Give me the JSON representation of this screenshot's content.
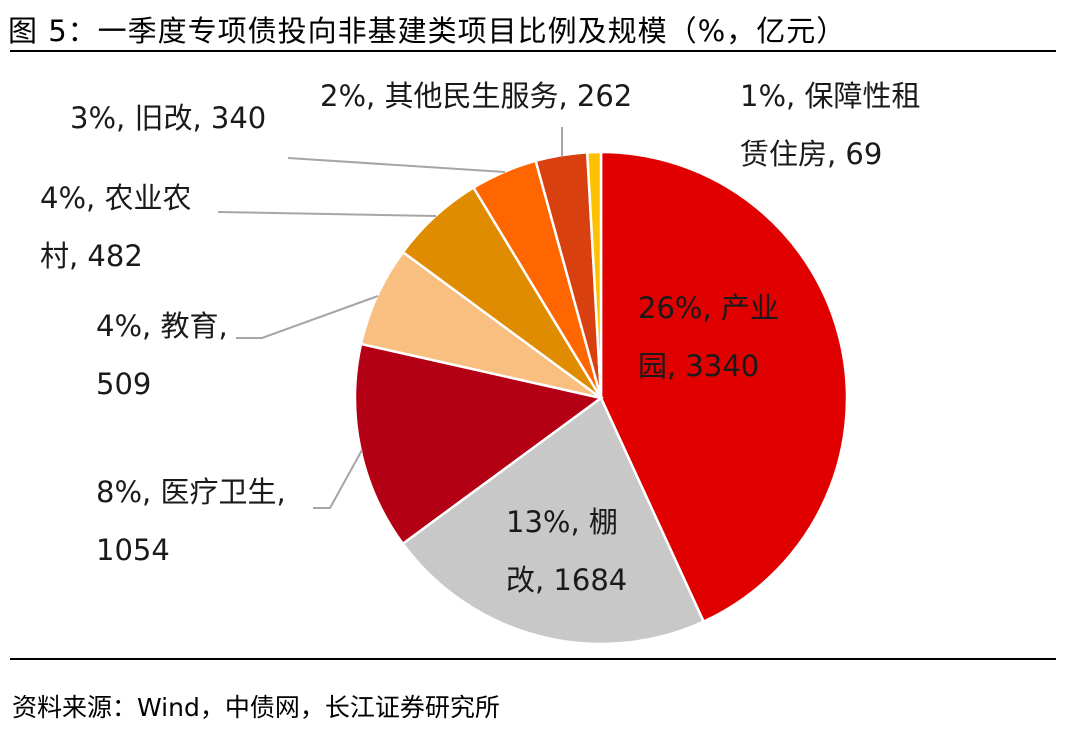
{
  "title": "图 5：一季度专项债投向非基建类项目比例及规模（%，亿元）",
  "source": "资料来源：Wind，中债网，长江证券研究所",
  "chart_data": {
    "type": "pie",
    "title": "图 5：一季度专项债投向非基建类项目比例及规模（%，亿元）",
    "units": [
      "%",
      "亿元"
    ],
    "slices": [
      {
        "name": "产业园",
        "value": 3340,
        "percent": 26,
        "color": "#e00000",
        "label_lines": [
          "26%, 产业",
          "园, 3340"
        ]
      },
      {
        "name": "棚改",
        "value": 1684,
        "percent": 13,
        "color": "#c8c8c8",
        "label_lines": [
          "13%, 棚",
          "改, 1684"
        ]
      },
      {
        "name": "医疗卫生",
        "value": 1054,
        "percent": 8,
        "color": "#b40014",
        "label_lines": [
          "8%, 医疗卫生,",
          "1054"
        ]
      },
      {
        "name": "教育",
        "value": 509,
        "percent": 4,
        "color": "#f8bf80",
        "label_lines": [
          "4%, 教育,",
          "509"
        ]
      },
      {
        "name": "农业农村",
        "value": 482,
        "percent": 4,
        "color": "#e08c00",
        "label_lines": [
          "4%, 农业农",
          "村, 482"
        ]
      },
      {
        "name": "旧改",
        "value": 340,
        "percent": 3,
        "color": "#ff6600",
        "label_lines": [
          "3%, 旧改, 340"
        ]
      },
      {
        "name": "其他民生服务",
        "value": 262,
        "percent": 2,
        "color": "#d84010",
        "label_lines": [
          "2%, 其他民生服务, 262"
        ]
      },
      {
        "name": "保障性租赁住房",
        "value": 69,
        "percent": 1,
        "color": "#ffc000",
        "label_lines": [
          "1%, 保障性租",
          "赁住房, 69"
        ]
      }
    ]
  }
}
